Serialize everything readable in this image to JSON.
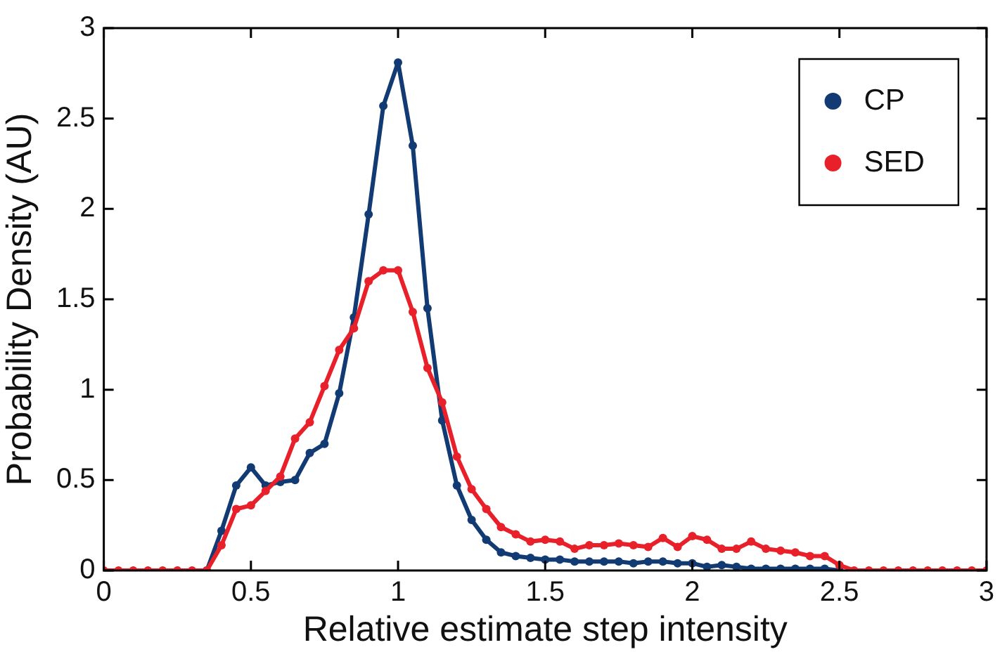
{
  "chart_data": {
    "type": "line",
    "xlabel": "Relative estimate step intensity",
    "ylabel": "Probability Density (AU)",
    "x": [
      0,
      0.05,
      0.1,
      0.15,
      0.2,
      0.25,
      0.3,
      0.35,
      0.4,
      0.45,
      0.5,
      0.55,
      0.6,
      0.65,
      0.7,
      0.75,
      0.8,
      0.85,
      0.9,
      0.95,
      1,
      1.05,
      1.1,
      1.15,
      1.2,
      1.25,
      1.3,
      1.35,
      1.4,
      1.45,
      1.5,
      1.55,
      1.6,
      1.65,
      1.7,
      1.75,
      1.8,
      1.85,
      1.9,
      1.95,
      2,
      2.05,
      2.1,
      2.15,
      2.2,
      2.25,
      2.3,
      2.35,
      2.4,
      2.45,
      2.5,
      2.55,
      2.6,
      2.65,
      2.7,
      2.75,
      2.8,
      2.85,
      2.9,
      2.95,
      3
    ],
    "series": [
      {
        "name": "CP",
        "color": "#123a73",
        "values": [
          null,
          null,
          null,
          null,
          null,
          null,
          null,
          0,
          0.22,
          0.47,
          0.57,
          0.47,
          0.49,
          0.5,
          0.65,
          0.7,
          0.98,
          1.4,
          1.97,
          2.57,
          2.81,
          2.35,
          1.45,
          0.83,
          0.47,
          0.28,
          0.17,
          0.1,
          0.08,
          0.07,
          0.06,
          0.06,
          0.05,
          0.05,
          0.05,
          0.05,
          0.04,
          0.05,
          0.05,
          0.04,
          0.04,
          0.02,
          0.03,
          0.02,
          0.01,
          0.01,
          0.01,
          0.01,
          0.01,
          0.01,
          0,
          null,
          null,
          null,
          null,
          null,
          null,
          null,
          null,
          null,
          null
        ]
      },
      {
        "name": "SED",
        "color": "#e8202a",
        "values": [
          0,
          0,
          0,
          0,
          0,
          0,
          0,
          0,
          0.14,
          0.34,
          0.36,
          0.44,
          0.52,
          0.73,
          0.82,
          1.02,
          1.22,
          1.34,
          1.6,
          1.66,
          1.66,
          1.43,
          1.12,
          0.93,
          0.63,
          0.45,
          0.34,
          0.24,
          0.2,
          0.16,
          0.17,
          0.16,
          0.12,
          0.14,
          0.14,
          0.15,
          0.14,
          0.13,
          0.18,
          0.13,
          0.19,
          0.17,
          0.12,
          0.12,
          0.16,
          0.12,
          0.11,
          0.1,
          0.08,
          0.08,
          0.03,
          0,
          0,
          0,
          0,
          0,
          0,
          0,
          0,
          0,
          0
        ]
      }
    ],
    "xlim": [
      0,
      3
    ],
    "xticks": [
      0,
      0.5,
      1,
      1.5,
      2,
      2.5,
      3
    ],
    "ylim": [
      0,
      3
    ],
    "yticks": [
      0,
      0.5,
      1,
      1.5,
      2,
      2.5,
      3
    ],
    "grid": false,
    "legend": "top right",
    "marker": "circle",
    "line_style": "solid"
  }
}
